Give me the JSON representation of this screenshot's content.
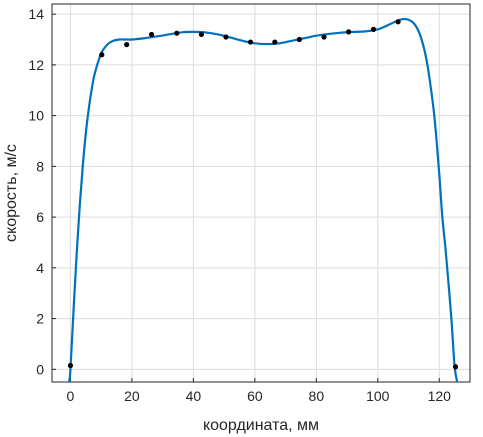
{
  "chart_data": {
    "type": "scatter",
    "title": "",
    "xlabel": "координата, мм",
    "ylabel": "скорость, м/с",
    "xlim": [
      -6,
      130
    ],
    "ylim": [
      -0.5,
      14.4
    ],
    "xticks": [
      0,
      20,
      40,
      60,
      80,
      100,
      120
    ],
    "yticks": [
      0,
      2,
      4,
      6,
      8,
      10,
      12,
      14
    ],
    "grid": true,
    "legend": "none",
    "series": [
      {
        "kind": "markers",
        "color": "#000000",
        "x": [
          0,
          10.2,
          18.3,
          26.4,
          34.6,
          42.6,
          50.6,
          58.6,
          66.5,
          74.5,
          82.5,
          90.5,
          98.6,
          106.6,
          125.3
        ],
        "y": [
          0.15,
          12.4,
          12.8,
          13.2,
          13.25,
          13.2,
          13.1,
          12.9,
          12.9,
          13.0,
          13.1,
          13.3,
          13.4,
          13.7,
          0.1
        ]
      },
      {
        "kind": "line",
        "color": "#0072BD",
        "x": [
          -0.5,
          0,
          1,
          2,
          3,
          4,
          5,
          6,
          7,
          8,
          10,
          12,
          14,
          16,
          18,
          20,
          24,
          28,
          32,
          36,
          40,
          44,
          48,
          52,
          56,
          60,
          64,
          68,
          72,
          76,
          80,
          84,
          88,
          92,
          96,
          100,
          103,
          106,
          108,
          110,
          112,
          114,
          116,
          118,
          119,
          120,
          121,
          122,
          123,
          124,
          125,
          126
        ],
        "y": [
          -0.6,
          0,
          2.3,
          4.5,
          6.4,
          8.0,
          9.3,
          10.3,
          11.1,
          11.7,
          12.45,
          12.8,
          12.95,
          13.0,
          13.0,
          13.0,
          13.05,
          13.12,
          13.2,
          13.28,
          13.3,
          13.28,
          13.2,
          13.08,
          12.95,
          12.85,
          12.82,
          12.85,
          12.95,
          13.05,
          13.15,
          13.22,
          13.27,
          13.3,
          13.32,
          13.4,
          13.55,
          13.72,
          13.8,
          13.78,
          13.6,
          13.1,
          12.1,
          10.4,
          9.2,
          7.7,
          6.0,
          4.8,
          3.4,
          1.9,
          0.1,
          -0.6
        ]
      }
    ]
  }
}
